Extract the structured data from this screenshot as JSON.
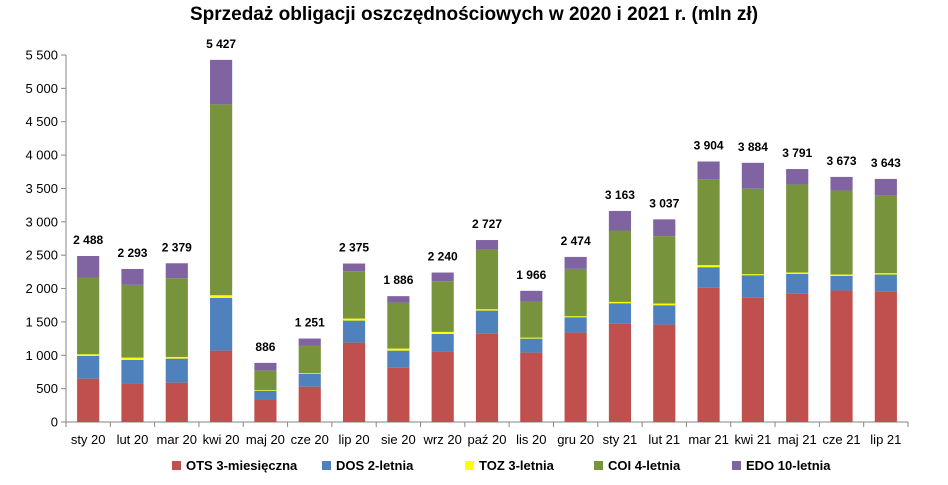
{
  "chart_data": {
    "type": "bar",
    "stacked": true,
    "title": "Sprzedaż obligacji oszczędnościowych w 2020 i 2021 r. (mln zł)",
    "categories": [
      "sty 20",
      "lut 20",
      "mar 20",
      "kwi 20",
      "maj 20",
      "cze 20",
      "lip 20",
      "sie 20",
      "wrz 20",
      "paź 20",
      "lis 20",
      "gru 20",
      "sty 21",
      "lut 21",
      "mar 21",
      "kwi 21",
      "maj 21",
      "cze 21",
      "lip 21"
    ],
    "series": [
      {
        "name": "OTS 3-miesięczna",
        "color": "#c0504d",
        "values": [
          650,
          570,
          590,
          1070,
          330,
          530,
          1190,
          820,
          1050,
          1330,
          1040,
          1340,
          1470,
          1460,
          2010,
          1870,
          1920,
          1970,
          1960
        ]
      },
      {
        "name": "DOS 2-letnia",
        "color": "#4f81bd",
        "values": [
          340,
          360,
          360,
          790,
          140,
          190,
          330,
          250,
          270,
          340,
          210,
          230,
          310,
          290,
          310,
          330,
          300,
          220,
          250
        ]
      },
      {
        "name": "TOZ 3-letnia",
        "color": "#ffff00",
        "values": [
          25,
          35,
          25,
          40,
          10,
          10,
          30,
          30,
          30,
          20,
          15,
          15,
          20,
          25,
          30,
          15,
          20,
          20,
          20
        ]
      },
      {
        "name": "COI 4-letnia",
        "color": "#77933c",
        "values": [
          1150,
          1090,
          1180,
          2860,
          290,
          410,
          710,
          690,
          760,
          890,
          540,
          710,
          1070,
          1010,
          1290,
          1280,
          1320,
          1260,
          1160
        ]
      },
      {
        "name": "EDO 10-letnia",
        "color": "#8064a2",
        "values": [
          323,
          238,
          224,
          667,
          116,
          111,
          115,
          96,
          130,
          147,
          161,
          179,
          293,
          252,
          264,
          389,
          231,
          203,
          253
        ]
      }
    ],
    "totals": [
      "2 488",
      "2 293",
      "2 379",
      "5 427",
      "886",
      "1 251",
      "2 375",
      "1 886",
      "2 240",
      "2 727",
      "1 966",
      "2 474",
      "3 163",
      "3 037",
      "3 904",
      "3 884",
      "3 791",
      "3 673",
      "3 643"
    ],
    "total_values": [
      2488,
      2293,
      2379,
      5427,
      886,
      1251,
      2375,
      1886,
      2240,
      2727,
      1966,
      2474,
      3163,
      3037,
      3904,
      3884,
      3791,
      3673,
      3643
    ],
    "ylim": [
      0,
      5500
    ],
    "yticks": [
      0,
      500,
      1000,
      1500,
      2000,
      2500,
      3000,
      3500,
      4000,
      4500,
      5000,
      5500
    ],
    "ytick_labels": [
      "0",
      "500",
      "1 000",
      "1 500",
      "2 000",
      "2 500",
      "3 000",
      "3 500",
      "4 000",
      "4 500",
      "5 000",
      "5 500"
    ],
    "grid": false,
    "legend_position": "bottom"
  }
}
